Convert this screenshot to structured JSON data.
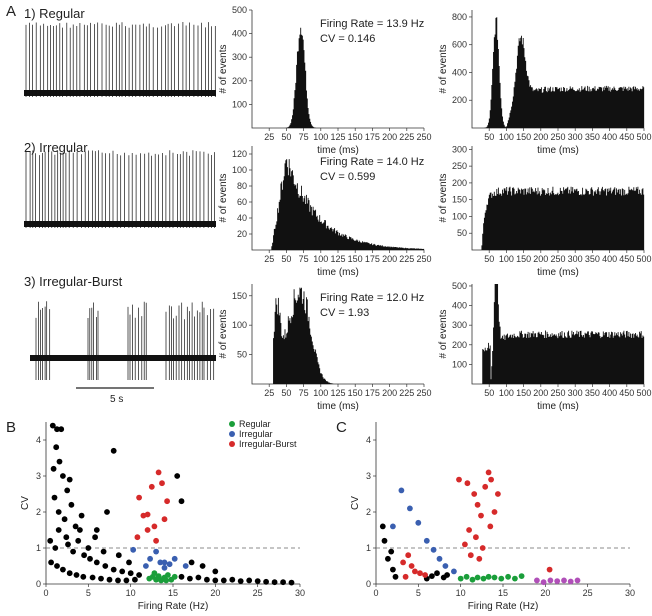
{
  "panels": {
    "a": "A",
    "b": "B",
    "c": "C"
  },
  "rows": [
    {
      "title": "1) Regular",
      "rate": "Firing Rate = 13.9 Hz",
      "cv": "CV = 0.146"
    },
    {
      "title": "2) Irregular",
      "rate": "Firing Rate = 14.0 Hz",
      "cv": "CV = 0.599"
    },
    {
      "title": "3) Irregular-Burst",
      "rate": "Firing Rate = 12.0 Hz",
      "cv": "CV = 1.93"
    }
  ],
  "scalebar": "5 s",
  "colors": {
    "regular": "#1a9e3a",
    "irregular": "#3a5fb0",
    "burst": "#d62a2a",
    "other": "#000000",
    "purple": "#b04fb8"
  },
  "chart_data": [
    {
      "id": "isi-regular",
      "type": "bar",
      "xlabel": "time (ms)",
      "ylabel": "# of events",
      "xlim": [
        0,
        250
      ],
      "ylim": [
        0,
        500
      ],
      "xticks": [
        25,
        50,
        75,
        100,
        125,
        150,
        175,
        200,
        225,
        250
      ],
      "yticks": [
        100,
        200,
        300,
        400,
        500
      ],
      "bins": [
        [
          55,
          5
        ],
        [
          58,
          20
        ],
        [
          60,
          60
        ],
        [
          62,
          120
        ],
        [
          64,
          200
        ],
        [
          66,
          300
        ],
        [
          68,
          380
        ],
        [
          70,
          420
        ],
        [
          72,
          440
        ],
        [
          74,
          400
        ],
        [
          76,
          330
        ],
        [
          78,
          240
        ],
        [
          80,
          160
        ],
        [
          82,
          100
        ],
        [
          84,
          60
        ],
        [
          86,
          30
        ],
        [
          88,
          15
        ],
        [
          90,
          5
        ]
      ]
    },
    {
      "id": "ac-regular",
      "type": "bar",
      "xlabel": "time (ms)",
      "ylabel": "# of events",
      "xlim": [
        0,
        500
      ],
      "ylim": [
        0,
        850
      ],
      "xticks": [
        50,
        100,
        150,
        200,
        250,
        300,
        350,
        400,
        450,
        500
      ],
      "yticks": [
        200,
        400,
        600,
        800
      ],
      "peaks": [
        [
          72,
          780
        ],
        [
          145,
          450
        ]
      ],
      "baseline": 290
    },
    {
      "id": "isi-irregular",
      "type": "bar",
      "xlabel": "time (ms)",
      "ylabel": "# of events",
      "xlim": [
        0,
        250
      ],
      "ylim": [
        0,
        130
      ],
      "xticks": [
        25,
        50,
        75,
        100,
        125,
        150,
        175,
        200,
        225,
        250
      ],
      "yticks": [
        20,
        40,
        60,
        80,
        100,
        120
      ],
      "peak_x": 50,
      "peak_y": 115
    },
    {
      "id": "ac-irregular",
      "type": "bar",
      "xlabel": "time (ms)",
      "ylabel": "# of events",
      "xlim": [
        0,
        500
      ],
      "ylim": [
        0,
        310
      ],
      "xticks": [
        50,
        100,
        150,
        200,
        250,
        300,
        350,
        400,
        450,
        500
      ],
      "yticks": [
        50,
        100,
        150,
        200,
        250,
        300
      ],
      "baseline": 180
    },
    {
      "id": "isi-burst",
      "type": "bar",
      "xlabel": "time (ms)",
      "ylabel": "# of events",
      "xlim": [
        0,
        250
      ],
      "ylim": [
        0,
        170
      ],
      "xticks": [
        25,
        50,
        75,
        100,
        125,
        150,
        175,
        200,
        225,
        250
      ],
      "yticks": [
        50,
        100,
        150
      ],
      "peak1": [
        35,
        120
      ],
      "peak2": [
        75,
        155
      ]
    },
    {
      "id": "ac-burst",
      "type": "bar",
      "xlabel": "time (ms)",
      "ylabel": "# of events",
      "xlim": [
        0,
        500
      ],
      "ylim": [
        0,
        510
      ],
      "xticks": [
        50,
        100,
        150,
        200,
        250,
        300,
        350,
        400,
        450,
        500
      ],
      "yticks": [
        100,
        200,
        300,
        400,
        500
      ],
      "peak": [
        70,
        440
      ],
      "baseline": 260
    },
    {
      "id": "scatter-b",
      "type": "scatter",
      "xlabel": "Firing Rate (Hz)",
      "ylabel": "CV",
      "xlim": [
        0,
        30
      ],
      "ylim": [
        0,
        4.5
      ],
      "xticks": [
        0,
        5,
        10,
        15,
        20,
        25,
        30
      ],
      "yticks": [
        0,
        1,
        2,
        3,
        4
      ],
      "hline": 1,
      "legend": [
        "Regular",
        "Irregular",
        "Irregular-Burst"
      ],
      "series": [
        {
          "name": "Regular",
          "color": "regular",
          "points": [
            [
              12.2,
              0.15
            ],
            [
              12.6,
              0.2
            ],
            [
              13,
              0.12
            ],
            [
              13.3,
              0.22
            ],
            [
              13.6,
              0.1
            ],
            [
              14,
              0.18
            ],
            [
              14.4,
              0.25
            ],
            [
              14.8,
              0.12
            ],
            [
              15.2,
              0.2
            ],
            [
              13.9,
              0.15
            ],
            [
              12.8,
              0.3
            ],
            [
              14.2,
              0.1
            ]
          ]
        },
        {
          "name": "Irregular",
          "color": "irregular",
          "points": [
            [
              10.3,
              0.95
            ],
            [
              11.8,
              0.5
            ],
            [
              12.3,
              0.7
            ],
            [
              13,
              0.9
            ],
            [
              13.5,
              0.6
            ],
            [
              14,
              0.45
            ],
            [
              14.6,
              0.55
            ],
            [
              15.2,
              0.7
            ],
            [
              16.5,
              0.5
            ],
            [
              14.0,
              0.6
            ]
          ]
        },
        {
          "name": "Irregular-Burst",
          "color": "burst",
          "points": [
            [
              11,
              2.4
            ],
            [
              11.5,
              1.9
            ],
            [
              12,
              1.5
            ],
            [
              12,
              1.93
            ],
            [
              12.5,
              2.7
            ],
            [
              13,
              1.2
            ],
            [
              13.3,
              3.1
            ],
            [
              13.7,
              2.8
            ],
            [
              14,
              1.8
            ],
            [
              14.3,
              2.3
            ],
            [
              10.8,
              1.3
            ],
            [
              12.8,
              1.6
            ]
          ]
        },
        {
          "name": "",
          "color": "other",
          "points": [
            [
              0.8,
              4.4
            ],
            [
              1.3,
              4.3
            ],
            [
              1.8,
              4.3
            ],
            [
              1.2,
              3.8
            ],
            [
              1.6,
              3.4
            ],
            [
              2.0,
              3.0
            ],
            [
              2.5,
              2.6
            ],
            [
              1.0,
              2.4
            ],
            [
              3.0,
              2.2
            ],
            [
              1.5,
              2.0
            ],
            [
              2.2,
              1.8
            ],
            [
              3.5,
              1.6
            ],
            [
              4.0,
              1.5
            ],
            [
              0.5,
              1.2
            ],
            [
              1.1,
              1.0
            ],
            [
              2.6,
              1.1
            ],
            [
              3.2,
              0.9
            ],
            [
              4.5,
              0.8
            ],
            [
              5.2,
              0.7
            ],
            [
              6.0,
              0.6
            ],
            [
              7.0,
              0.5
            ],
            [
              8.0,
              0.4
            ],
            [
              9.0,
              0.35
            ],
            [
              10,
              0.3
            ],
            [
              11,
              0.25
            ],
            [
              0.6,
              0.6
            ],
            [
              1.3,
              0.5
            ],
            [
              2.0,
              0.4
            ],
            [
              2.8,
              0.3
            ],
            [
              3.6,
              0.25
            ],
            [
              4.4,
              0.2
            ],
            [
              5.5,
              0.18
            ],
            [
              6.5,
              0.15
            ],
            [
              7.5,
              0.12
            ],
            [
              8.5,
              0.1
            ],
            [
              9.5,
              0.1
            ],
            [
              10.5,
              0.12
            ],
            [
              16,
              0.2
            ],
            [
              17,
              0.15
            ],
            [
              18,
              0.18
            ],
            [
              19,
              0.12
            ],
            [
              20,
              0.1
            ],
            [
              21,
              0.1
            ],
            [
              22,
              0.12
            ],
            [
              23,
              0.08
            ],
            [
              24,
              0.1
            ],
            [
              25,
              0.08
            ],
            [
              26,
              0.06
            ],
            [
              27,
              0.05
            ],
            [
              28,
              0.05
            ],
            [
              29,
              0.04
            ],
            [
              8.0,
              3.7
            ],
            [
              6.0,
              1.5
            ],
            [
              7.2,
              2.0
            ],
            [
              15.5,
              3.0
            ],
            [
              16,
              2.3
            ],
            [
              17.2,
              0.6
            ],
            [
              18.5,
              0.5
            ],
            [
              20,
              0.35
            ],
            [
              1.5,
              1.5
            ],
            [
              2.4,
              1.3
            ],
            [
              3.8,
              1.2
            ],
            [
              5.0,
              1.0
            ],
            [
              4.2,
              1.9
            ],
            [
              5.8,
              1.3
            ],
            [
              6.8,
              0.9
            ],
            [
              8.6,
              0.8
            ],
            [
              9.8,
              0.6
            ],
            [
              0.9,
              3.2
            ],
            [
              2.8,
              2.9
            ]
          ]
        }
      ]
    },
    {
      "id": "scatter-c",
      "type": "scatter",
      "xlabel": "Firing Rate (Hz)",
      "ylabel": "CV",
      "xlim": [
        0,
        30
      ],
      "ylim": [
        0,
        4.5
      ],
      "xticks": [
        0,
        5,
        10,
        15,
        20,
        25,
        30
      ],
      "yticks": [
        0,
        1,
        2,
        3,
        4
      ],
      "hline": 1,
      "series": [
        {
          "color": "other",
          "points": [
            [
              0.8,
              1.6
            ],
            [
              1.0,
              1.2
            ],
            [
              1.4,
              0.7
            ],
            [
              2.0,
              0.4
            ],
            [
              2.3,
              0.2
            ],
            [
              1.8,
              0.9
            ],
            [
              6.0,
              0.15
            ],
            [
              6.6,
              0.22
            ],
            [
              7.2,
              0.3
            ],
            [
              8.0,
              0.18
            ],
            [
              8.4,
              0.25
            ]
          ]
        },
        {
          "color": "irregular",
          "points": [
            [
              3.0,
              2.6
            ],
            [
              4.0,
              2.1
            ],
            [
              5.0,
              1.7
            ],
            [
              6.0,
              1.2
            ],
            [
              6.8,
              0.95
            ],
            [
              7.5,
              0.7
            ],
            [
              8.2,
              0.5
            ],
            [
              9.2,
              0.35
            ],
            [
              2.0,
              1.6
            ]
          ]
        },
        {
          "color": "burst",
          "points": [
            [
              9.8,
              2.9
            ],
            [
              10.8,
              2.8
            ],
            [
              11.6,
              2.5
            ],
            [
              12.0,
              2.2
            ],
            [
              12.4,
              1.9
            ],
            [
              12.9,
              2.7
            ],
            [
              13.3,
              3.1
            ],
            [
              13.6,
              2.9
            ],
            [
              14.0,
              2.0
            ],
            [
              14.4,
              2.5
            ],
            [
              11.0,
              1.5
            ],
            [
              11.8,
              1.3
            ],
            [
              12.6,
              1.0
            ],
            [
              13.5,
              1.6
            ],
            [
              10.5,
              1.1
            ],
            [
              3.8,
              0.8
            ],
            [
              4.2,
              0.5
            ],
            [
              4.6,
              0.35
            ],
            [
              5.2,
              0.3
            ],
            [
              5.8,
              0.25
            ],
            [
              3.2,
              0.6
            ],
            [
              3.5,
              0.2
            ],
            [
              20.5,
              0.4
            ],
            [
              11.2,
              0.8
            ],
            [
              12.2,
              0.7
            ]
          ]
        },
        {
          "color": "regular",
          "points": [
            [
              10.0,
              0.15
            ],
            [
              10.7,
              0.2
            ],
            [
              11.4,
              0.12
            ],
            [
              12.0,
              0.18
            ],
            [
              12.7,
              0.15
            ],
            [
              13.3,
              0.2
            ],
            [
              14.0,
              0.18
            ],
            [
              14.8,
              0.15
            ],
            [
              15.6,
              0.2
            ],
            [
              16.4,
              0.15
            ],
            [
              17.2,
              0.22
            ]
          ]
        },
        {
          "color": "purple",
          "points": [
            [
              19.0,
              0.1
            ],
            [
              19.8,
              0.05
            ],
            [
              20.6,
              0.1
            ],
            [
              21.4,
              0.08
            ],
            [
              22.2,
              0.1
            ],
            [
              23.0,
              0.07
            ],
            [
              23.8,
              0.1
            ]
          ]
        }
      ]
    }
  ]
}
